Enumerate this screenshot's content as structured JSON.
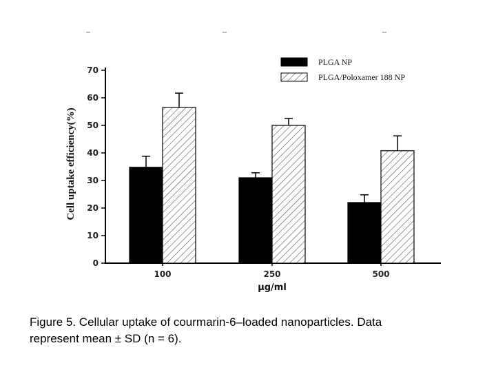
{
  "chart_data": {
    "type": "bar",
    "categories": [
      "100",
      "250",
      "500"
    ],
    "series": [
      {
        "name": "PLGA NP",
        "values": [
          34.8,
          31.0,
          22.0
        ],
        "errors": [
          4.0,
          1.8,
          2.8
        ],
        "fill": "solid",
        "color": "#000000"
      },
      {
        "name": "PLGA/Poloxamer 188 NP",
        "values": [
          56.5,
          50.0,
          40.8
        ],
        "errors": [
          5.2,
          2.5,
          5.4
        ],
        "fill": "hatched",
        "color": "#ffffff"
      }
    ],
    "title": "",
    "xlabel": "μg/ml",
    "ylabel": "Cell uptake efficiency(%)",
    "ylim": [
      0,
      70
    ],
    "yticks": [
      "0",
      "10",
      "20",
      "30",
      "40",
      "50",
      "60",
      "70"
    ],
    "legend": "top-right",
    "grid": false
  },
  "caption": {
    "line1": "Figure 5. Cellular uptake of courmarin-6–loaded nanoparticles. Data",
    "line2": "represent mean ± SD (n = 6)."
  }
}
